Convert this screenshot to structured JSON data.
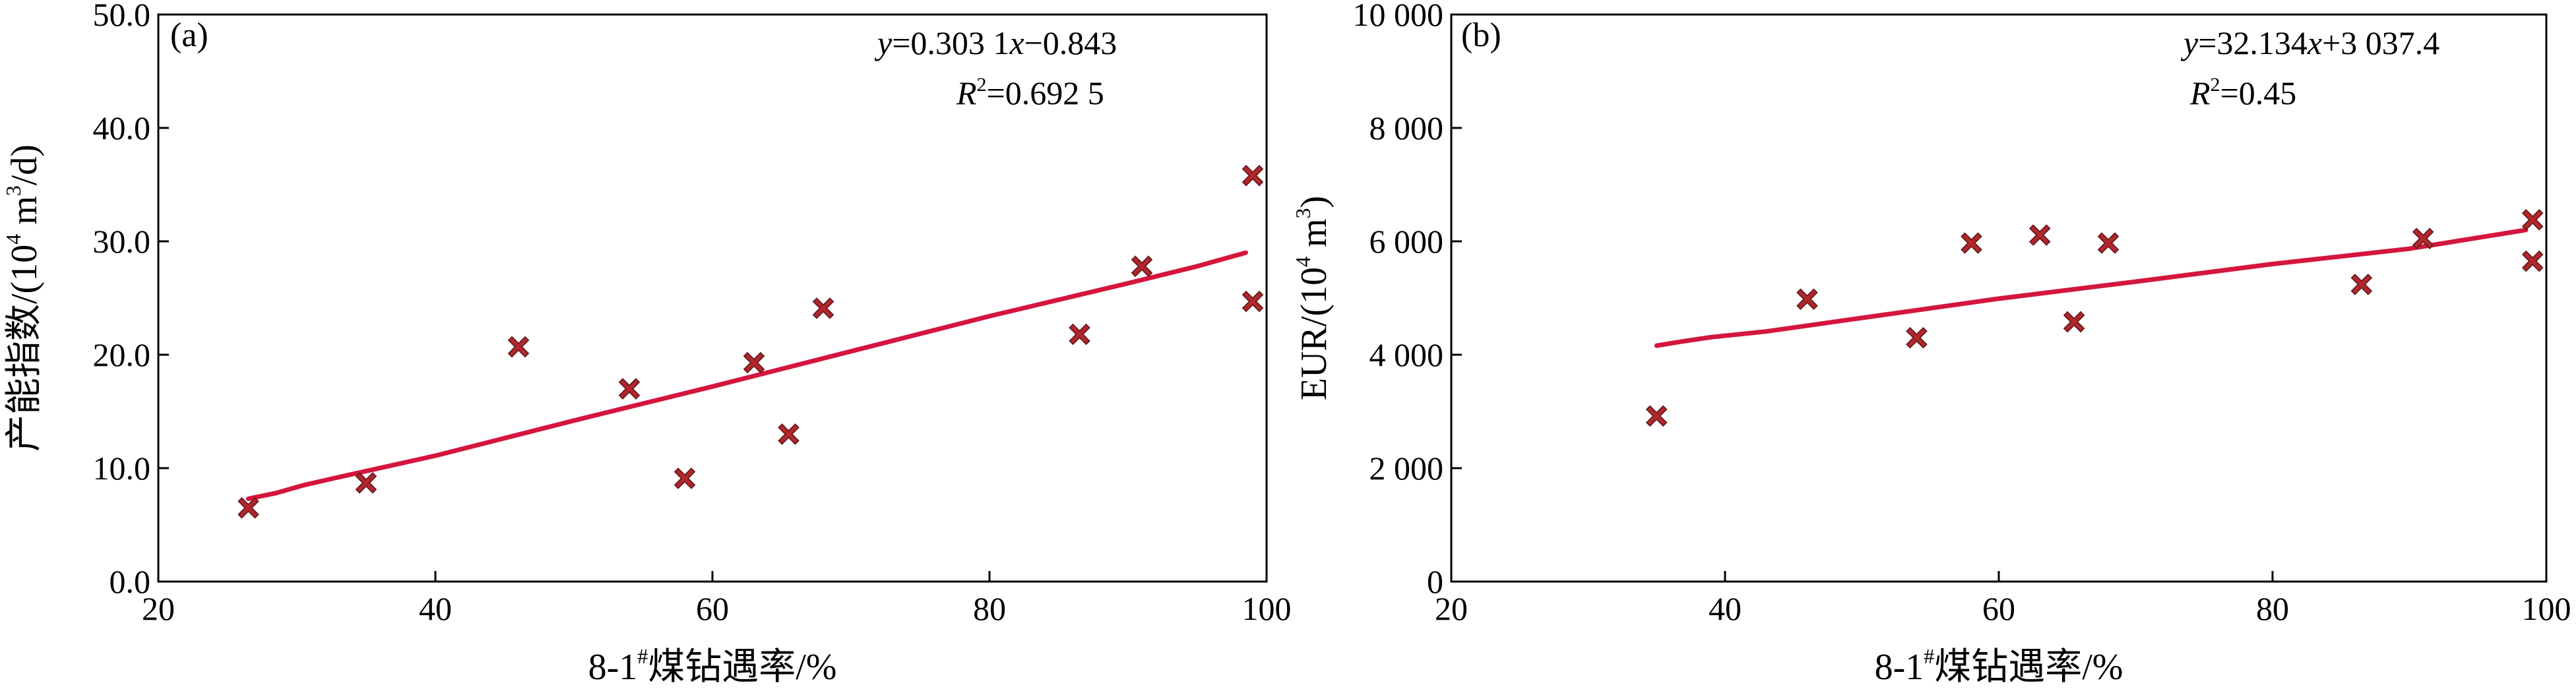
{
  "chart_data": [
    {
      "type": "scatter",
      "panel_label": "(a)",
      "xlabel_main": "8-1",
      "xlabel_sup": "#",
      "xlabel_tail": "煤钻遇率/%",
      "ylabel_main": "产能指数/(10",
      "ylabel_sup": "4",
      "ylabel_tail": " m",
      "ylabel_sup2": "3",
      "ylabel_end": "/d)",
      "xlim": [
        20,
        100
      ],
      "ylim": [
        0,
        50
      ],
      "xticks": [
        20,
        40,
        60,
        80,
        100
      ],
      "xtick_labels": [
        "20",
        "40",
        "60",
        "80",
        "100"
      ],
      "yticks": [
        0,
        10,
        20,
        30,
        40,
        50
      ],
      "ytick_labels": [
        "0.0",
        "10.0",
        "20.0",
        "30.0",
        "40.0",
        "50.0"
      ],
      "equation": {
        "y_var": "y",
        "y_rest": "=0.303 1",
        "x_var": "x",
        "x_rest": "−0.843",
        "r_var": "R",
        "r_sup": "2",
        "r_rest": "=0.692 5"
      },
      "points": [
        {
          "x": 26.5,
          "y": 6.5
        },
        {
          "x": 35,
          "y": 8.7
        },
        {
          "x": 46,
          "y": 20.7
        },
        {
          "x": 54,
          "y": 17
        },
        {
          "x": 58,
          "y": 9.1
        },
        {
          "x": 63,
          "y": 19.3
        },
        {
          "x": 65.5,
          "y": 13
        },
        {
          "x": 68,
          "y": 24.1
        },
        {
          "x": 86.5,
          "y": 21.8
        },
        {
          "x": 91,
          "y": 27.8
        },
        {
          "x": 99,
          "y": 35.8
        },
        {
          "x": 99,
          "y": 24.7
        }
      ],
      "fit_line": [
        {
          "x": 26.5,
          "y": 7.3
        },
        {
          "x": 28.5,
          "y": 7.8
        },
        {
          "x": 30.5,
          "y": 8.5
        },
        {
          "x": 33,
          "y": 9.2
        },
        {
          "x": 40,
          "y": 11.1
        },
        {
          "x": 50,
          "y": 14.2
        },
        {
          "x": 60,
          "y": 17.2
        },
        {
          "x": 70,
          "y": 20.3
        },
        {
          "x": 80,
          "y": 23.4
        },
        {
          "x": 90,
          "y": 26.3
        },
        {
          "x": 95,
          "y": 27.8
        },
        {
          "x": 98.5,
          "y": 29
        }
      ],
      "marker_color": "#b5262b",
      "line_color": "#d4163f"
    },
    {
      "type": "scatter",
      "panel_label": "(b)",
      "xlabel_main": "8-1",
      "xlabel_sup": "#",
      "xlabel_tail": "煤钻遇率/%",
      "ylabel_main": "EUR/(10",
      "ylabel_sup": "4",
      "ylabel_tail": " m",
      "ylabel_sup2": "3",
      "ylabel_end": ")",
      "xlim": [
        20,
        100
      ],
      "ylim": [
        0,
        10000
      ],
      "xticks": [
        20,
        40,
        60,
        80,
        100
      ],
      "xtick_labels": [
        "20",
        "40",
        "60",
        "80",
        "100"
      ],
      "yticks": [
        0,
        2000,
        4000,
        6000,
        8000,
        10000
      ],
      "ytick_labels": [
        "0",
        "2 000",
        "4 000",
        "6 000",
        "8 000",
        "10 000"
      ],
      "equation": {
        "y_var": "y",
        "y_rest": "=32.134",
        "x_var": "x",
        "x_rest": "+3 037.4",
        "r_var": "R",
        "r_sup": "2",
        "r_rest": "=0.45"
      },
      "points": [
        {
          "x": 35,
          "y": 2920
        },
        {
          "x": 46,
          "y": 4980
        },
        {
          "x": 54,
          "y": 4300
        },
        {
          "x": 58,
          "y": 5970
        },
        {
          "x": 63,
          "y": 6110
        },
        {
          "x": 65.5,
          "y": 4580
        },
        {
          "x": 68,
          "y": 5970
        },
        {
          "x": 86.5,
          "y": 5240
        },
        {
          "x": 91,
          "y": 6050
        },
        {
          "x": 99,
          "y": 6380
        },
        {
          "x": 99,
          "y": 5650
        }
      ],
      "fit_line": [
        {
          "x": 35,
          "y": 4160
        },
        {
          "x": 37,
          "y": 4240
        },
        {
          "x": 39,
          "y": 4310
        },
        {
          "x": 43,
          "y": 4410
        },
        {
          "x": 50,
          "y": 4650
        },
        {
          "x": 60,
          "y": 4990
        },
        {
          "x": 70,
          "y": 5290
        },
        {
          "x": 80,
          "y": 5600
        },
        {
          "x": 90,
          "y": 5870
        },
        {
          "x": 98.5,
          "y": 6200
        }
      ],
      "marker_color": "#b5262b",
      "line_color": "#d4163f"
    }
  ]
}
